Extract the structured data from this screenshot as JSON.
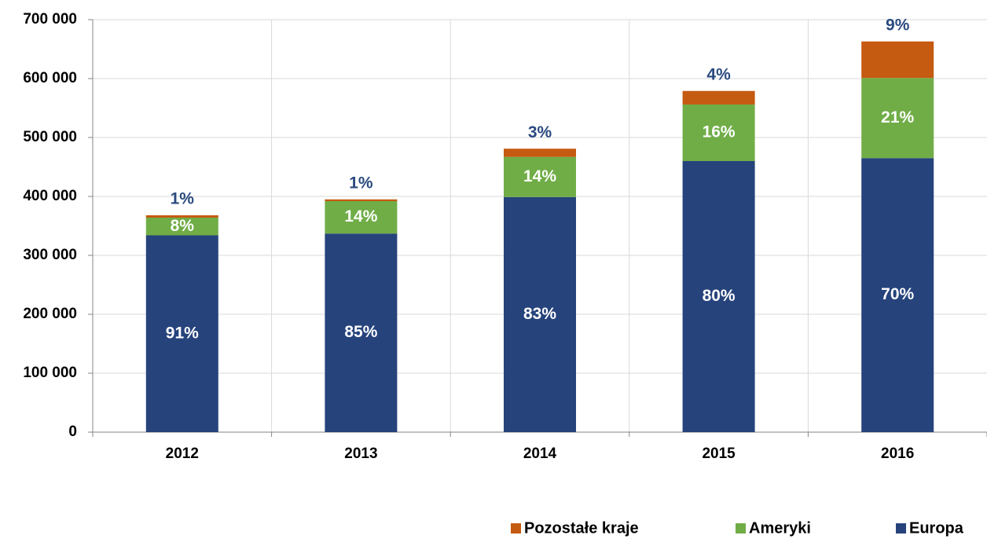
{
  "chart_data": {
    "type": "stacked_bar",
    "categories": [
      "2012",
      "2013",
      "2014",
      "2015",
      "2016"
    ],
    "series": [
      {
        "name": "Europa",
        "color": "#26437c",
        "values": [
          334000,
          337000,
          399000,
          460000,
          465000
        ],
        "share_labels": [
          "91%",
          "85%",
          "83%",
          "80%",
          "70%"
        ]
      },
      {
        "name": "Ameryki",
        "color": "#70ad47",
        "values": [
          30000,
          55000,
          68000,
          96000,
          136000
        ],
        "share_labels": [
          "8%",
          "14%",
          "14%",
          "16%",
          "21%"
        ]
      },
      {
        "name": "Pozostałe kraje",
        "color": "#c55a11",
        "values": [
          4000,
          3000,
          14000,
          23000,
          62000
        ],
        "share_labels": [
          "1%",
          "1%",
          "3%",
          "4%",
          "9%"
        ]
      }
    ],
    "ylim": [
      0,
      700000
    ],
    "yticks": [
      0,
      {
        "value": 100000,
        "label": "100 000"
      },
      {
        "value": 200000,
        "label": "200 000"
      },
      {
        "value": 300000,
        "label": "300 000"
      },
      {
        "value": 400000,
        "label": "400 000"
      },
      {
        "value": 500000,
        "label": "500 000"
      },
      {
        "value": 600000,
        "label": "600 000"
      },
      {
        "value": 700000,
        "label": "700 000"
      }
    ],
    "grid": true,
    "legend": "bottom-right"
  }
}
